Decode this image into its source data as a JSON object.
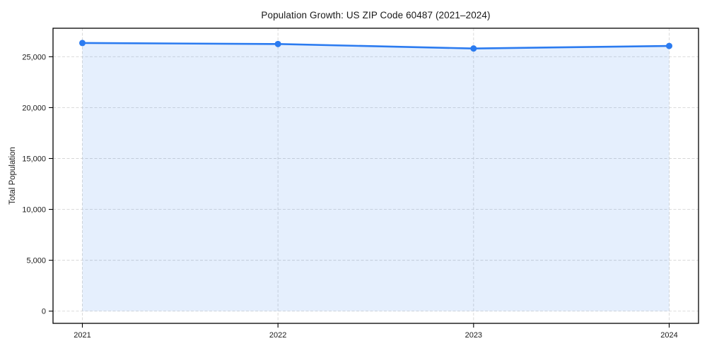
{
  "chart_data": {
    "type": "area",
    "title": "Population Growth: US ZIP Code 60487 (2021–2024)",
    "xlabel": "",
    "ylabel": "Total Population",
    "x": [
      2021,
      2022,
      2023,
      2024
    ],
    "x_labels": [
      "2021",
      "2022",
      "2023",
      "2024"
    ],
    "series": [
      {
        "name": "Total Population",
        "values": [
          26350,
          26250,
          25810,
          26060
        ]
      }
    ],
    "yticks": [
      0,
      5000,
      10000,
      15000,
      20000,
      25000
    ],
    "ytick_labels": [
      "0",
      "5,000",
      "10,000",
      "15,000",
      "20,000",
      "25,000"
    ],
    "ylim": [
      -1200,
      27800
    ],
    "xlim": [
      2020.85,
      2024.15
    ],
    "grid": true,
    "legend": "none",
    "colors": {
      "line": "#2b7bf0",
      "marker": "#2b7bf0",
      "fill": "#2b7bf0",
      "fill_opacity": 0.12,
      "grid": "#d6d6d6",
      "spine": "#000000",
      "text": "#1a1a1a",
      "background": "#ffffff"
    }
  }
}
